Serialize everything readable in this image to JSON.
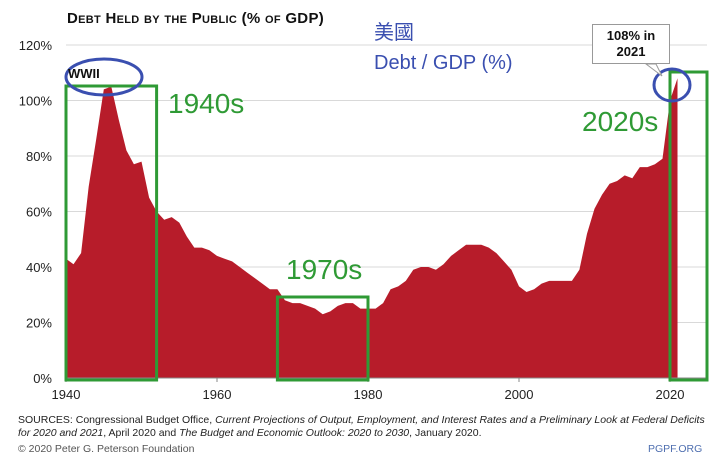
{
  "header": {
    "title": "Debt Held by the Public (% of GDP)"
  },
  "annotations": {
    "country_cn": "美國",
    "subtitle": "Debt / GDP (%)",
    "wwii": "WWII",
    "decade_1940s": "1940s",
    "decade_1970s": "1970s",
    "decade_2020s": "2020s",
    "callout_line1": "108% in",
    "callout_line2": "2021"
  },
  "footer": {
    "sources_prefix": "SOURCES: Congressional Budget Office, ",
    "sources_title1": "Current Projections of Output, Employment, and Interest Rates and a Preliminary Look at Federal Deficits for 2020 and 2021",
    "sources_mid": ", April 2020 and ",
    "sources_title2": "The Budget and Economic Outlook: 2020 to 2030",
    "sources_suffix": ", January 2020.",
    "copyright": "© 2020 Peter G. Peterson Foundation",
    "site": "PGPF.ORG"
  },
  "colors": {
    "area_fill": "#b71c2a",
    "highlight_box": "#2f9a35",
    "ellipse": "#3a4fb0",
    "grid": "#d9d9d9"
  },
  "chart_data": {
    "type": "area",
    "xlim": [
      1940,
      2021
    ],
    "ylim": [
      0,
      120
    ],
    "x_ticks": [
      1940,
      1960,
      1980,
      2000,
      2020
    ],
    "x_tick_labels": [
      "1940",
      "1960",
      "1980",
      "2000",
      "2020"
    ],
    "y_ticks": [
      0,
      20,
      40,
      60,
      80,
      100,
      120
    ],
    "y_tick_labels": [
      "0%",
      "20%",
      "40%",
      "60%",
      "80%",
      "100%",
      "120%"
    ],
    "grid": true,
    "x": [
      1940,
      1941,
      1942,
      1943,
      1944,
      1945,
      1946,
      1947,
      1948,
      1949,
      1950,
      1951,
      1952,
      1953,
      1954,
      1955,
      1956,
      1957,
      1958,
      1959,
      1960,
      1961,
      1962,
      1963,
      1964,
      1965,
      1966,
      1967,
      1968,
      1969,
      1970,
      1971,
      1972,
      1973,
      1974,
      1975,
      1976,
      1977,
      1978,
      1979,
      1980,
      1981,
      1982,
      1983,
      1984,
      1985,
      1986,
      1987,
      1988,
      1989,
      1990,
      1991,
      1992,
      1993,
      1994,
      1995,
      1996,
      1997,
      1998,
      1999,
      2000,
      2001,
      2002,
      2003,
      2004,
      2005,
      2006,
      2007,
      2008,
      2009,
      2010,
      2011,
      2012,
      2013,
      2014,
      2015,
      2016,
      2017,
      2018,
      2019,
      2020,
      2021
    ],
    "values": [
      43,
      41,
      45,
      69,
      86,
      104,
      105,
      93,
      82,
      77,
      78,
      65,
      60,
      57,
      58,
      56,
      51,
      47,
      47,
      46,
      44,
      43,
      42,
      40,
      38,
      36,
      34,
      32,
      32,
      28,
      27,
      27,
      26,
      25,
      23,
      24,
      26,
      27,
      27,
      25,
      25,
      25,
      27,
      32,
      33,
      35,
      39,
      40,
      40,
      39,
      41,
      44,
      46,
      48,
      48,
      48,
      47,
      45,
      42,
      39,
      33,
      31,
      32,
      34,
      35,
      35,
      35,
      35,
      39,
      52,
      61,
      66,
      70,
      71,
      73,
      72,
      76,
      76,
      77,
      79,
      100,
      108
    ],
    "highlights": [
      {
        "label": "1940s",
        "x_range": [
          1940,
          1952
        ]
      },
      {
        "label": "1970s",
        "x_range": [
          1968,
          1980
        ]
      },
      {
        "label": "2020s",
        "x_range": [
          2020,
          2025
        ]
      }
    ]
  }
}
